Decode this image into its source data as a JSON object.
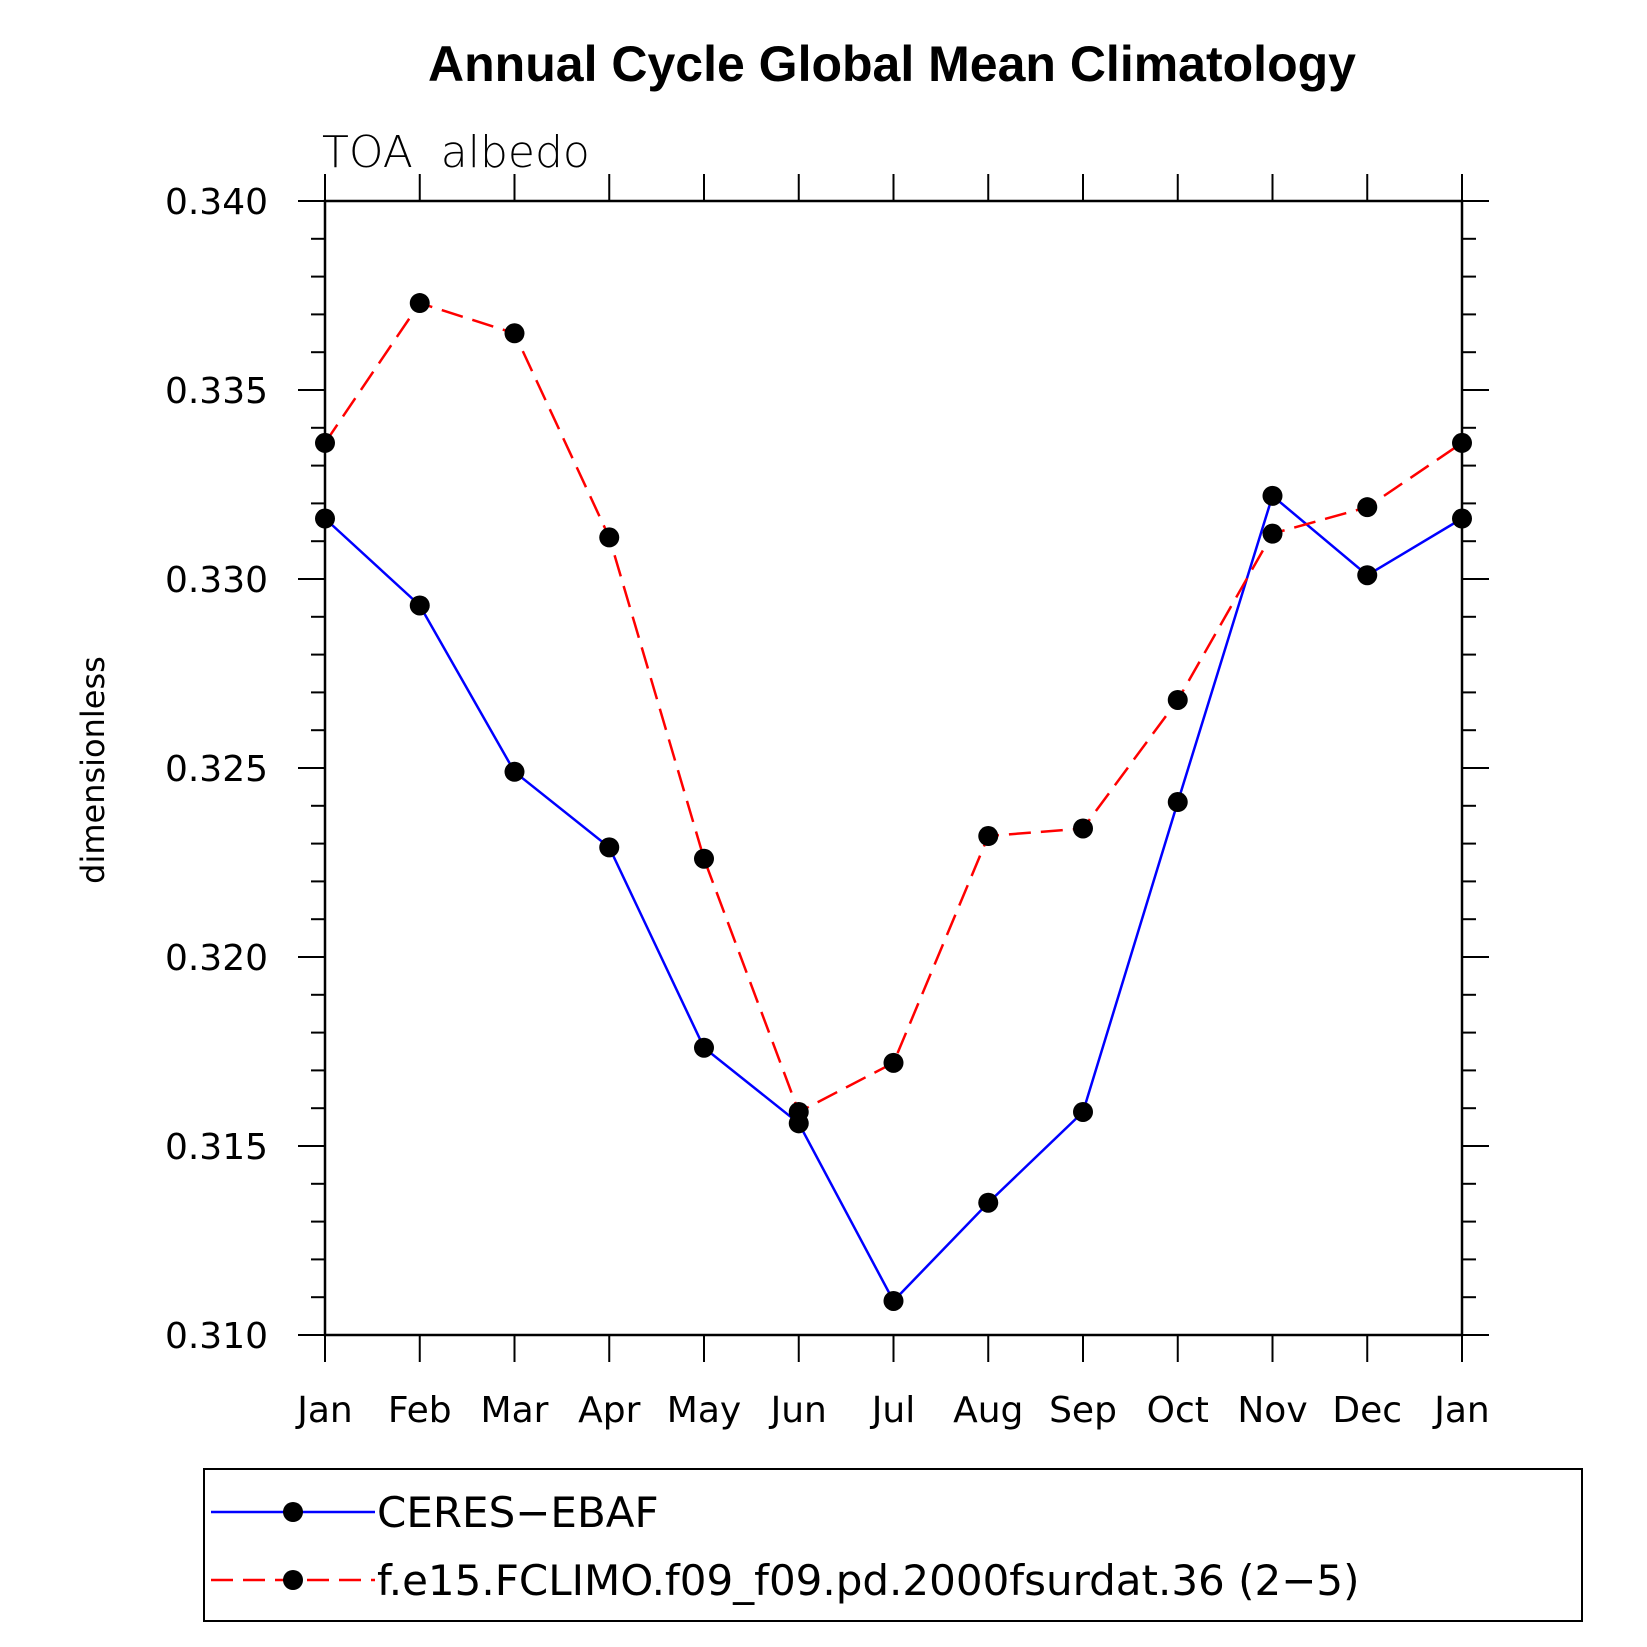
{
  "chart_data": {
    "type": "line",
    "title": "Annual Cycle Global Mean Climatology",
    "subtitle": "TOA  albedo",
    "xlabel": "",
    "ylabel": "dimensionless",
    "categories": [
      "Jan",
      "Feb",
      "Mar",
      "Apr",
      "May",
      "Jun",
      "Jul",
      "Aug",
      "Sep",
      "Oct",
      "Nov",
      "Dec",
      "Jan"
    ],
    "ylim": [
      0.31,
      0.34
    ],
    "yticks": [
      "0.310",
      "0.315",
      "0.320",
      "0.325",
      "0.330",
      "0.335",
      "0.340"
    ],
    "ytick_values": [
      0.31,
      0.315,
      0.32,
      0.325,
      0.33,
      0.335,
      0.34
    ],
    "grid": false,
    "legend_position": "bottom",
    "series": [
      {
        "name": "CERES−EBAF",
        "color": "#0000ff",
        "dashed": false,
        "values": [
          0.3316,
          0.3293,
          0.3249,
          0.3229,
          0.3176,
          0.3156,
          0.3109,
          0.3135,
          0.3159,
          0.3241,
          0.3322,
          0.3301,
          0.3316
        ]
      },
      {
        "name": "f.e15.FCLIMO.f09_f09.pd.2000fsurdat.36 (2−5)",
        "color": "#ff0000",
        "dashed": true,
        "values": [
          0.3336,
          0.3373,
          0.3365,
          0.3311,
          0.3226,
          0.3159,
          0.3172,
          0.3232,
          0.3234,
          0.3268,
          0.3312,
          0.3319,
          0.3336
        ]
      }
    ],
    "marker_color": "#000000"
  }
}
